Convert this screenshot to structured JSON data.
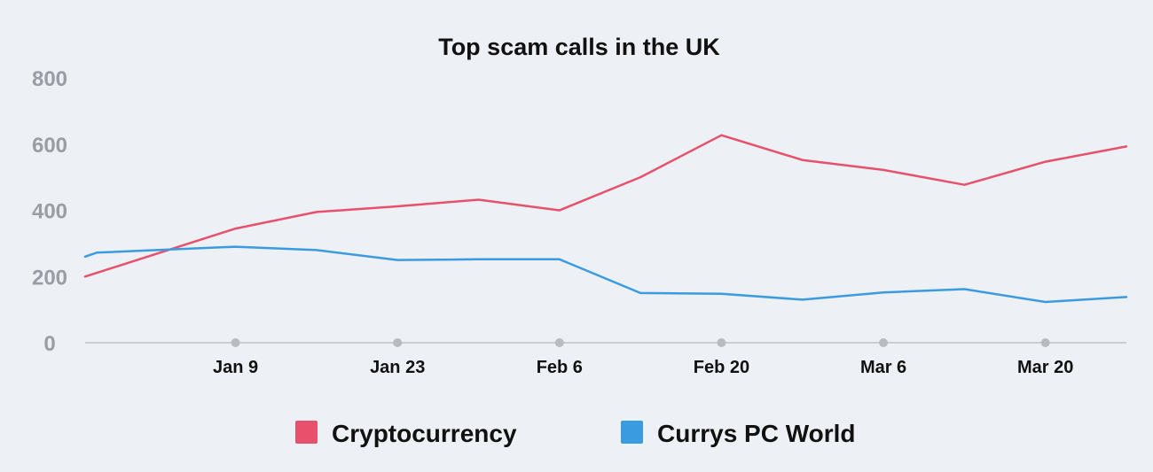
{
  "chart_data": {
    "type": "line",
    "title": "Top scam calls in the UK",
    "xlabel": "",
    "ylabel": "",
    "ylim": [
      0,
      800
    ],
    "yticks": [
      0,
      200,
      400,
      600,
      800
    ],
    "xlim": [
      "2022-12-27",
      "2023-03-27"
    ],
    "xticks": [
      {
        "date": "2023-01-09",
        "label": "Jan 9"
      },
      {
        "date": "2023-01-23",
        "label": "Jan 23"
      },
      {
        "date": "2023-02-06",
        "label": "Feb 6"
      },
      {
        "date": "2023-02-20",
        "label": "Feb 20"
      },
      {
        "date": "2023-03-06",
        "label": "Mar 6"
      },
      {
        "date": "2023-03-20",
        "label": "Mar 20"
      }
    ],
    "grid": false,
    "legend_position": "bottom",
    "series": [
      {
        "name": "Cryptocurrency",
        "color": "#e8516c",
        "points": [
          {
            "x": "2022-12-27",
            "y": 200
          },
          {
            "x": "2023-01-09",
            "y": 345
          },
          {
            "x": "2023-01-16",
            "y": 395
          },
          {
            "x": "2023-01-23",
            "y": 412
          },
          {
            "x": "2023-01-30",
            "y": 432
          },
          {
            "x": "2023-02-06",
            "y": 400
          },
          {
            "x": "2023-02-13",
            "y": 500
          },
          {
            "x": "2023-02-20",
            "y": 627
          },
          {
            "x": "2023-02-27",
            "y": 552
          },
          {
            "x": "2023-03-06",
            "y": 522
          },
          {
            "x": "2023-03-13",
            "y": 477
          },
          {
            "x": "2023-03-20",
            "y": 547
          },
          {
            "x": "2023-03-27",
            "y": 593
          }
        ]
      },
      {
        "name": "Currys PC World",
        "color": "#3a9be0",
        "points": [
          {
            "x": "2022-12-27",
            "y": 260
          },
          {
            "x": "2022-12-28",
            "y": 272
          },
          {
            "x": "2023-01-09",
            "y": 290
          },
          {
            "x": "2023-01-16",
            "y": 280
          },
          {
            "x": "2023-01-23",
            "y": 250
          },
          {
            "x": "2023-01-30",
            "y": 252
          },
          {
            "x": "2023-02-06",
            "y": 252
          },
          {
            "x": "2023-02-13",
            "y": 150
          },
          {
            "x": "2023-02-20",
            "y": 148
          },
          {
            "x": "2023-02-27",
            "y": 130
          },
          {
            "x": "2023-03-06",
            "y": 152
          },
          {
            "x": "2023-03-13",
            "y": 162
          },
          {
            "x": "2023-03-20",
            "y": 123
          },
          {
            "x": "2023-03-27",
            "y": 138
          }
        ]
      }
    ]
  }
}
